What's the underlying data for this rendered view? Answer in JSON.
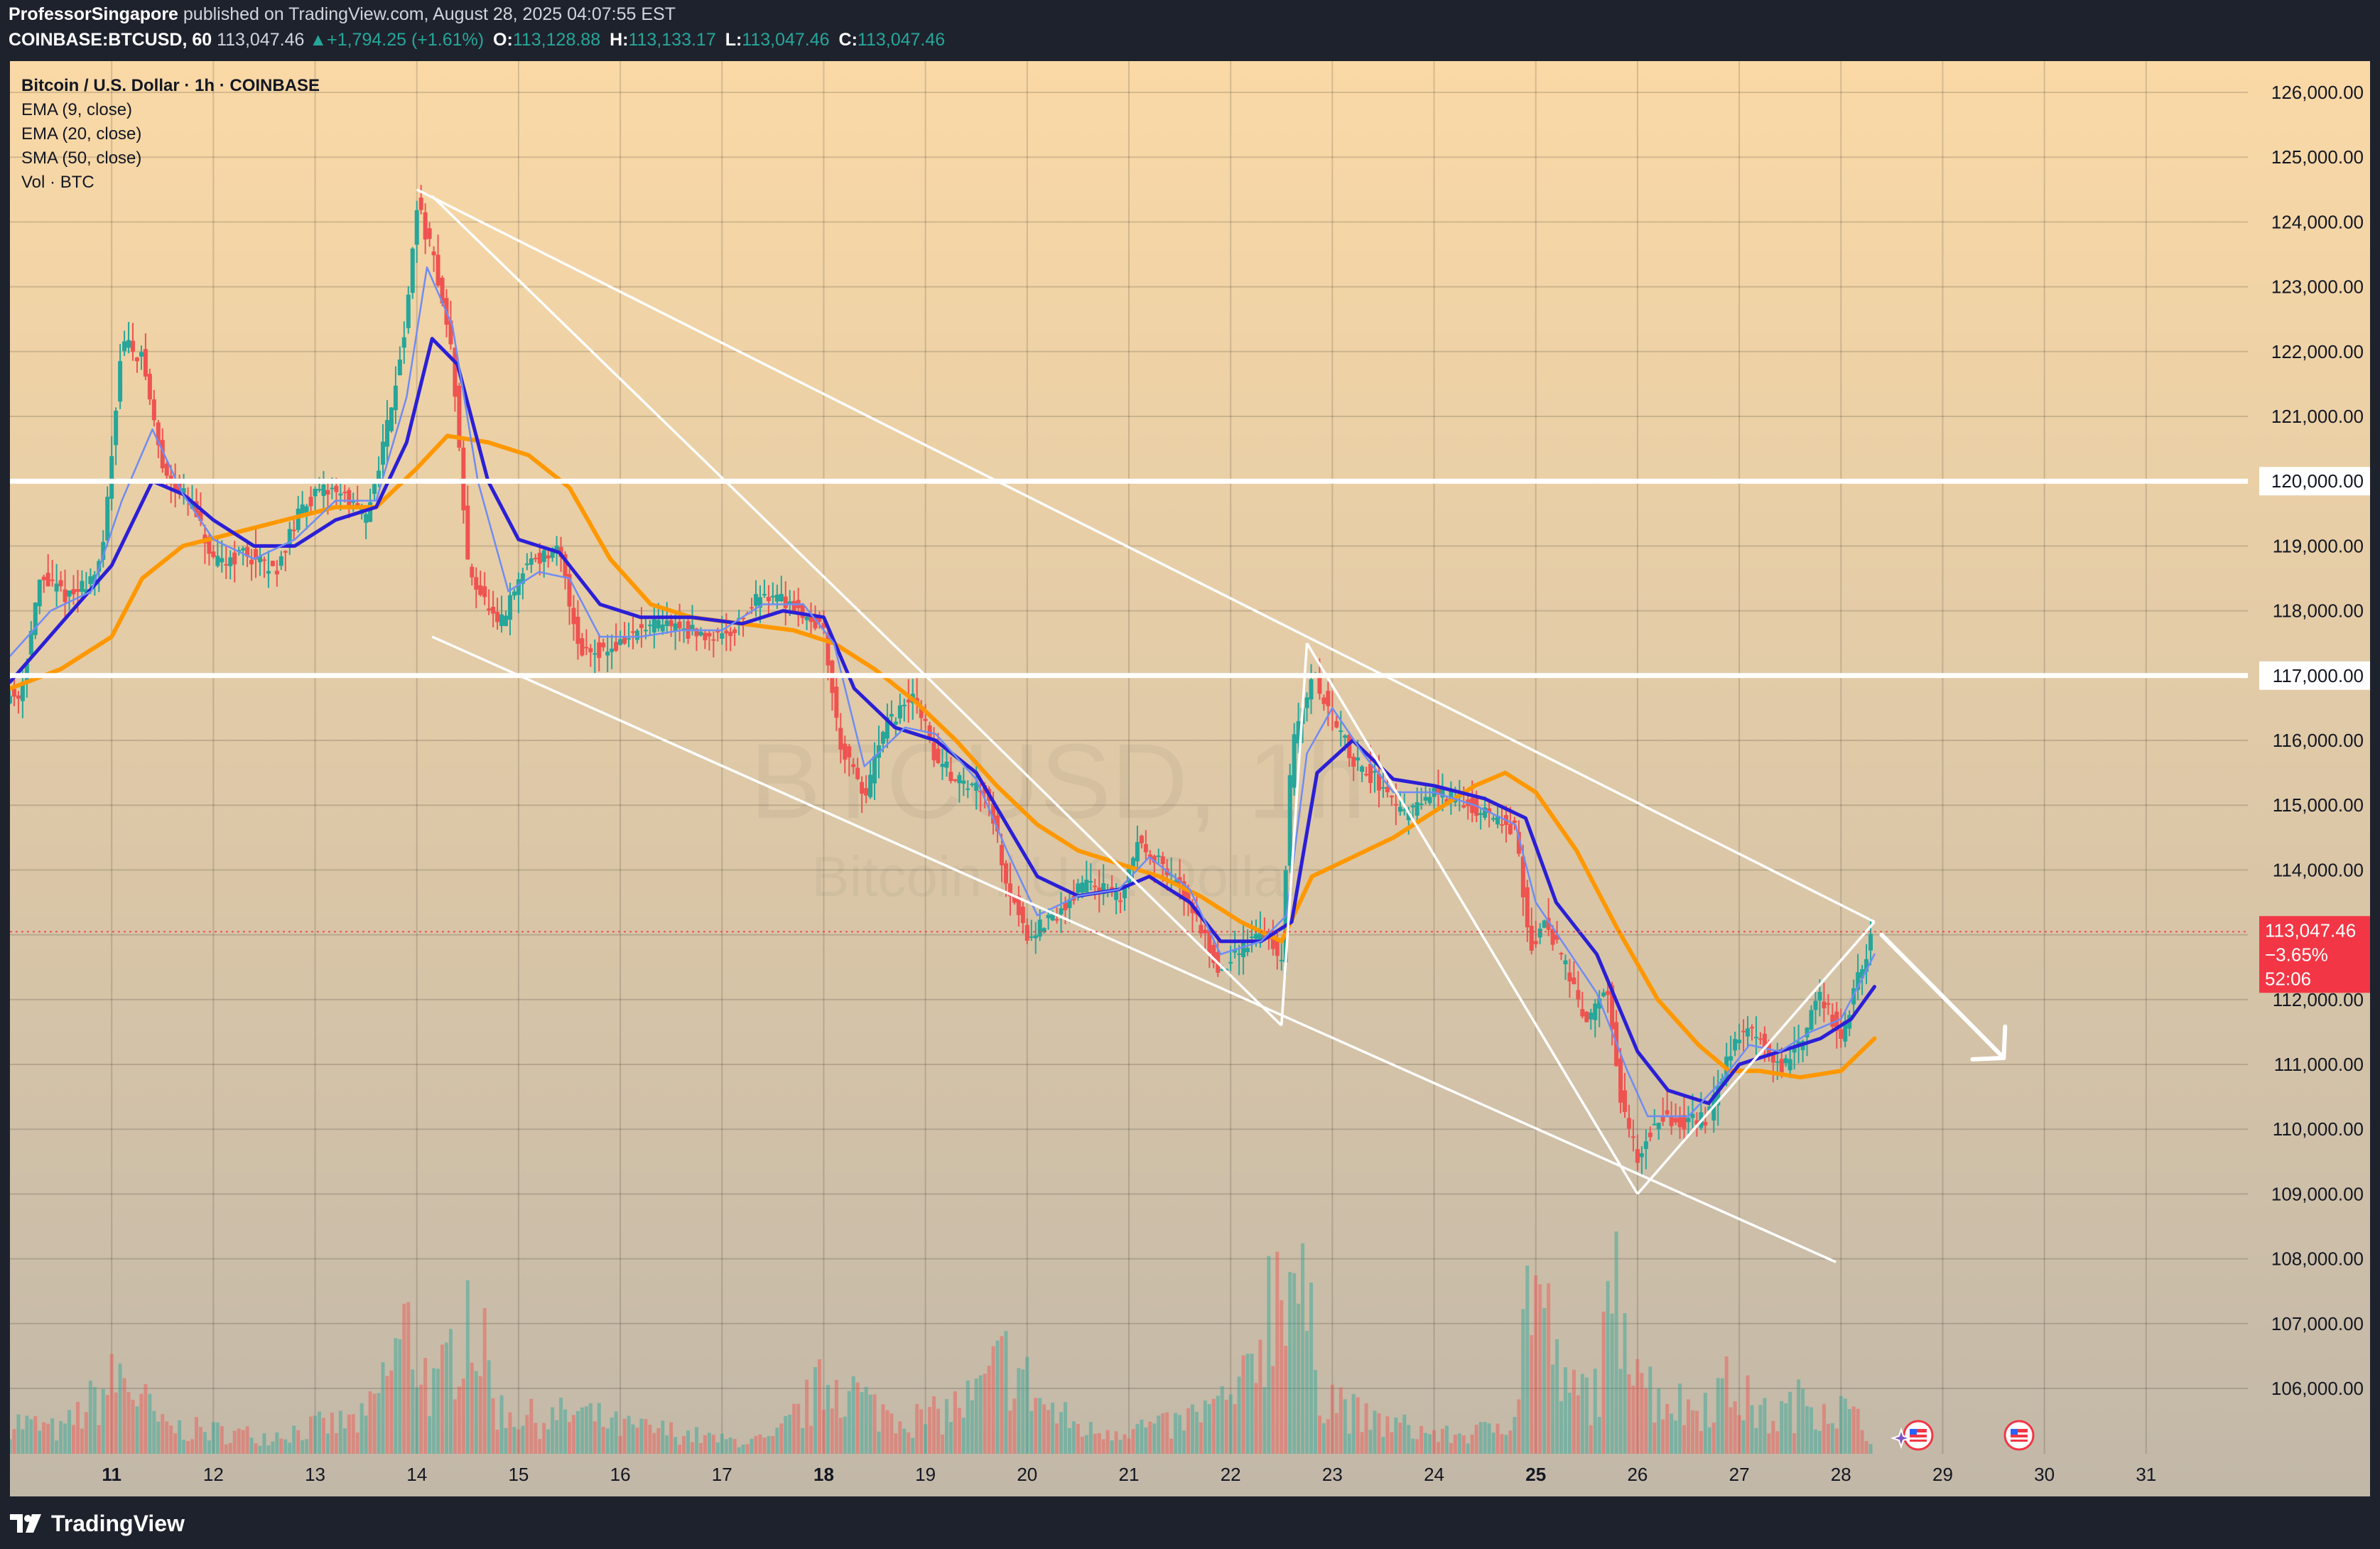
{
  "header": {
    "author": "ProfessorSingapore",
    "published": "published on TradingView.com, August 28, 2025 04:07:55 EST",
    "symbol": "COINBASE:BTCUSD, 60",
    "last": "113,047.46",
    "change": "+1,794.25 (+1.61%)",
    "open": "113,128.88",
    "high": "113,133.17",
    "low": "113,047.46",
    "close": "113,047.46",
    "labels": {
      "o": "O:",
      "h": "H:",
      "l": "L:",
      "c": "C:"
    }
  },
  "legend": {
    "title": "Bitcoin / U.S. Dollar · 1h · COINBASE",
    "items": [
      "EMA (9, close)",
      "EMA (20, close)",
      "SMA (50, close)",
      "Vol · BTC"
    ]
  },
  "watermark": {
    "symbol": "BTCUSD, 1h",
    "name": "Bitcoin / U.S. Dollar"
  },
  "brand": "TradingView",
  "colors": {
    "up": "#26a69a",
    "down": "#ef5350",
    "ema9": "#6f8cf5",
    "ema20": "#2b1fd6",
    "sma50": "#ff9800",
    "trend": "#ffffff",
    "bg_top": "#fad9a6",
    "bg_bottom": "#c2b8a8",
    "price_label": "#f23645"
  },
  "chart_data": {
    "type": "candlestick",
    "x_labels": [
      {
        "day": 11,
        "label": "11",
        "bold": true
      },
      {
        "day": 12,
        "label": "12"
      },
      {
        "day": 13,
        "label": "13"
      },
      {
        "day": 14,
        "label": "14"
      },
      {
        "day": 15,
        "label": "15"
      },
      {
        "day": 16,
        "label": "16"
      },
      {
        "day": 17,
        "label": "17"
      },
      {
        "day": 18,
        "label": "18",
        "bold": true
      },
      {
        "day": 19,
        "label": "19"
      },
      {
        "day": 20,
        "label": "20"
      },
      {
        "day": 21,
        "label": "21"
      },
      {
        "day": 22,
        "label": "22"
      },
      {
        "day": 23,
        "label": "23"
      },
      {
        "day": 24,
        "label": "24"
      },
      {
        "day": 25,
        "label": "25",
        "bold": true
      },
      {
        "day": 26,
        "label": "26"
      },
      {
        "day": 27,
        "label": "27"
      },
      {
        "day": 28,
        "label": "28"
      },
      {
        "day": 29,
        "label": "29"
      },
      {
        "day": 30,
        "label": "30"
      },
      {
        "day": 31,
        "label": "31"
      }
    ],
    "y_ticks": [
      106000,
      107000,
      108000,
      109000,
      110000,
      111000,
      112000,
      113000,
      114000,
      115000,
      116000,
      117000,
      118000,
      119000,
      120000,
      121000,
      122000,
      123000,
      124000,
      125000,
      126000
    ],
    "y_tick_labels": [
      "106,000.00",
      "107,000.00",
      "108,000.00",
      "109,000.00",
      "110,000.00",
      "111,000.00",
      "112,000.00",
      "113,000.00",
      "114,000.00",
      "115,000.00",
      "116,000.00",
      "117,000.00",
      "118,000.00",
      "119,000.00",
      "120,000.00",
      "121,000.00",
      "122,000.00",
      "123,000.00",
      "124,000.00",
      "125,000.00",
      "126,000.00"
    ],
    "ylim": [
      105000,
      127000
    ],
    "xlim": [
      10.0,
      32.0
    ],
    "price_path": [
      [
        10.1,
        116700
      ],
      [
        10.3,
        118500
      ],
      [
        10.6,
        118200
      ],
      [
        10.9,
        118700
      ],
      [
        11.1,
        122200
      ],
      [
        11.3,
        121900
      ],
      [
        11.5,
        120200
      ],
      [
        11.8,
        119600
      ],
      [
        12.0,
        118700
      ],
      [
        12.3,
        118900
      ],
      [
        12.6,
        118600
      ],
      [
        12.9,
        119700
      ],
      [
        13.2,
        119900
      ],
      [
        13.5,
        119400
      ],
      [
        13.7,
        120800
      ],
      [
        13.9,
        122500
      ],
      [
        14.0,
        124300
      ],
      [
        14.2,
        123200
      ],
      [
        14.35,
        121900
      ],
      [
        14.5,
        118700
      ],
      [
        14.8,
        117700
      ],
      [
        15.1,
        118800
      ],
      [
        15.4,
        118900
      ],
      [
        15.6,
        117400
      ],
      [
        15.9,
        117400
      ],
      [
        16.2,
        117700
      ],
      [
        16.5,
        117800
      ],
      [
        16.8,
        117600
      ],
      [
        17.1,
        117700
      ],
      [
        17.4,
        118300
      ],
      [
        17.7,
        118100
      ],
      [
        18.0,
        117700
      ],
      [
        18.15,
        116000
      ],
      [
        18.4,
        115100
      ],
      [
        18.6,
        116200
      ],
      [
        18.9,
        116700
      ],
      [
        19.1,
        115700
      ],
      [
        19.4,
        115300
      ],
      [
        19.6,
        115300
      ],
      [
        19.8,
        113800
      ],
      [
        20.0,
        113000
      ],
      [
        20.3,
        113300
      ],
      [
        20.6,
        113900
      ],
      [
        20.9,
        113500
      ],
      [
        21.1,
        114500
      ],
      [
        21.4,
        113900
      ],
      [
        21.6,
        113500
      ],
      [
        21.9,
        112400
      ],
      [
        22.1,
        112800
      ],
      [
        22.3,
        113100
      ],
      [
        22.5,
        112600
      ],
      [
        22.6,
        115900
      ],
      [
        22.8,
        117000
      ],
      [
        23.0,
        116400
      ],
      [
        23.2,
        115700
      ],
      [
        23.5,
        115300
      ],
      [
        23.7,
        114800
      ],
      [
        24.0,
        115200
      ],
      [
        24.2,
        115100
      ],
      [
        24.5,
        114900
      ],
      [
        24.8,
        114600
      ],
      [
        24.95,
        112800
      ],
      [
        25.1,
        113200
      ],
      [
        25.3,
        112500
      ],
      [
        25.5,
        111600
      ],
      [
        25.7,
        112200
      ],
      [
        25.85,
        110300
      ],
      [
        26.0,
        109600
      ],
      [
        26.2,
        110200
      ],
      [
        26.5,
        110100
      ],
      [
        26.7,
        110200
      ],
      [
        26.85,
        110900
      ],
      [
        27.0,
        111500
      ],
      [
        27.2,
        111500
      ],
      [
        27.4,
        110900
      ],
      [
        27.6,
        111300
      ],
      [
        27.8,
        112100
      ],
      [
        28.0,
        111400
      ],
      [
        28.2,
        112500
      ],
      [
        28.33,
        113047
      ]
    ],
    "ema9_path": [
      [
        10.0,
        117300
      ],
      [
        10.4,
        118000
      ],
      [
        10.8,
        118300
      ],
      [
        11.1,
        119700
      ],
      [
        11.4,
        120800
      ],
      [
        11.7,
        119800
      ],
      [
        12.0,
        119100
      ],
      [
        12.4,
        118800
      ],
      [
        12.8,
        119100
      ],
      [
        13.2,
        119700
      ],
      [
        13.6,
        119700
      ],
      [
        13.9,
        121300
      ],
      [
        14.1,
        123300
      ],
      [
        14.35,
        122400
      ],
      [
        14.6,
        120000
      ],
      [
        14.9,
        118300
      ],
      [
        15.2,
        118600
      ],
      [
        15.5,
        118500
      ],
      [
        15.8,
        117600
      ],
      [
        16.2,
        117600
      ],
      [
        16.6,
        117700
      ],
      [
        17.0,
        117700
      ],
      [
        17.4,
        118100
      ],
      [
        17.8,
        118100
      ],
      [
        18.1,
        117500
      ],
      [
        18.4,
        115600
      ],
      [
        18.8,
        116200
      ],
      [
        19.1,
        116100
      ],
      [
        19.5,
        115400
      ],
      [
        19.8,
        114300
      ],
      [
        20.1,
        113300
      ],
      [
        20.5,
        113600
      ],
      [
        20.9,
        113700
      ],
      [
        21.2,
        114200
      ],
      [
        21.6,
        113700
      ],
      [
        21.9,
        112700
      ],
      [
        22.3,
        112900
      ],
      [
        22.55,
        113300
      ],
      [
        22.75,
        115800
      ],
      [
        23.0,
        116500
      ],
      [
        23.3,
        115800
      ],
      [
        23.6,
        115200
      ],
      [
        24.0,
        115200
      ],
      [
        24.4,
        115000
      ],
      [
        24.8,
        114700
      ],
      [
        25.0,
        113500
      ],
      [
        25.3,
        112800
      ],
      [
        25.6,
        112100
      ],
      [
        25.9,
        110900
      ],
      [
        26.1,
        110200
      ],
      [
        26.5,
        110200
      ],
      [
        26.8,
        110700
      ],
      [
        27.1,
        111300
      ],
      [
        27.4,
        111200
      ],
      [
        27.7,
        111500
      ],
      [
        28.0,
        111700
      ],
      [
        28.2,
        112300
      ],
      [
        28.33,
        112700
      ]
    ],
    "ema20_path": [
      [
        10.0,
        116900
      ],
      [
        10.5,
        117800
      ],
      [
        11.0,
        118700
      ],
      [
        11.4,
        120000
      ],
      [
        11.7,
        119800
      ],
      [
        12.0,
        119400
      ],
      [
        12.4,
        119000
      ],
      [
        12.8,
        119000
      ],
      [
        13.2,
        119400
      ],
      [
        13.6,
        119600
      ],
      [
        13.9,
        120600
      ],
      [
        14.15,
        122200
      ],
      [
        14.4,
        121800
      ],
      [
        14.7,
        120000
      ],
      [
        15.0,
        119100
      ],
      [
        15.4,
        118900
      ],
      [
        15.8,
        118100
      ],
      [
        16.2,
        117900
      ],
      [
        16.7,
        117900
      ],
      [
        17.2,
        117800
      ],
      [
        17.6,
        118000
      ],
      [
        18.0,
        117900
      ],
      [
        18.3,
        116800
      ],
      [
        18.7,
        116200
      ],
      [
        19.1,
        116000
      ],
      [
        19.5,
        115500
      ],
      [
        19.8,
        114700
      ],
      [
        20.1,
        113900
      ],
      [
        20.5,
        113600
      ],
      [
        20.9,
        113700
      ],
      [
        21.2,
        113900
      ],
      [
        21.6,
        113500
      ],
      [
        21.9,
        112900
      ],
      [
        22.3,
        112900
      ],
      [
        22.6,
        113200
      ],
      [
        22.85,
        115500
      ],
      [
        23.2,
        116000
      ],
      [
        23.6,
        115400
      ],
      [
        24.0,
        115300
      ],
      [
        24.5,
        115100
      ],
      [
        24.9,
        114800
      ],
      [
        25.2,
        113500
      ],
      [
        25.6,
        112700
      ],
      [
        26.0,
        111200
      ],
      [
        26.3,
        110600
      ],
      [
        26.7,
        110400
      ],
      [
        27.0,
        111000
      ],
      [
        27.4,
        111200
      ],
      [
        27.8,
        111400
      ],
      [
        28.1,
        111700
      ],
      [
        28.33,
        112200
      ]
    ],
    "sma50_path": [
      [
        10.0,
        116800
      ],
      [
        10.5,
        117100
      ],
      [
        11.0,
        117600
      ],
      [
        11.3,
        118500
      ],
      [
        11.7,
        119000
      ],
      [
        12.2,
        119200
      ],
      [
        12.7,
        119400
      ],
      [
        13.2,
        119600
      ],
      [
        13.6,
        119600
      ],
      [
        14.0,
        120200
      ],
      [
        14.3,
        120700
      ],
      [
        14.7,
        120600
      ],
      [
        15.1,
        120400
      ],
      [
        15.5,
        119900
      ],
      [
        15.9,
        118800
      ],
      [
        16.3,
        118100
      ],
      [
        16.7,
        117900
      ],
      [
        17.2,
        117800
      ],
      [
        17.7,
        117700
      ],
      [
        18.1,
        117500
      ],
      [
        18.5,
        117100
      ],
      [
        18.9,
        116600
      ],
      [
        19.3,
        116000
      ],
      [
        19.7,
        115300
      ],
      [
        20.1,
        114700
      ],
      [
        20.5,
        114300
      ],
      [
        20.9,
        114100
      ],
      [
        21.3,
        113900
      ],
      [
        21.7,
        113600
      ],
      [
        22.1,
        113200
      ],
      [
        22.5,
        112900
      ],
      [
        22.8,
        113900
      ],
      [
        23.2,
        114200
      ],
      [
        23.6,
        114500
      ],
      [
        24.0,
        114900
      ],
      [
        24.4,
        115300
      ],
      [
        24.7,
        115500
      ],
      [
        25.0,
        115200
      ],
      [
        25.4,
        114300
      ],
      [
        25.8,
        113100
      ],
      [
        26.2,
        112000
      ],
      [
        26.6,
        111300
      ],
      [
        26.9,
        110900
      ],
      [
        27.2,
        110900
      ],
      [
        27.6,
        110800
      ],
      [
        28.0,
        110900
      ],
      [
        28.33,
        111400
      ]
    ],
    "volume_profile": [
      [
        10.0,
        0.15
      ],
      [
        10.5,
        0.1
      ],
      [
        11.1,
        0.35
      ],
      [
        11.5,
        0.12
      ],
      [
        12.0,
        0.1
      ],
      [
        12.5,
        0.08
      ],
      [
        13.0,
        0.12
      ],
      [
        13.5,
        0.15
      ],
      [
        13.9,
        0.55
      ],
      [
        14.2,
        0.25
      ],
      [
        14.5,
        0.7
      ],
      [
        14.8,
        0.2
      ],
      [
        15.2,
        0.15
      ],
      [
        15.6,
        0.18
      ],
      [
        16.0,
        0.12
      ],
      [
        16.5,
        0.1
      ],
      [
        17.0,
        0.06
      ],
      [
        17.5,
        0.06
      ],
      [
        18.1,
        0.35
      ],
      [
        18.5,
        0.2
      ],
      [
        19.0,
        0.15
      ],
      [
        19.5,
        0.25
      ],
      [
        19.8,
        0.42
      ],
      [
        20.2,
        0.2
      ],
      [
        20.6,
        0.1
      ],
      [
        21.0,
        0.12
      ],
      [
        21.4,
        0.12
      ],
      [
        21.8,
        0.2
      ],
      [
        22.1,
        0.25
      ],
      [
        22.55,
        0.95
      ],
      [
        22.9,
        0.3
      ],
      [
        23.3,
        0.15
      ],
      [
        23.7,
        0.12
      ],
      [
        24.1,
        0.08
      ],
      [
        24.5,
        0.1
      ],
      [
        24.8,
        0.2
      ],
      [
        24.95,
        0.85
      ],
      [
        25.3,
        0.25
      ],
      [
        25.6,
        0.3
      ],
      [
        25.85,
        0.8
      ],
      [
        26.1,
        0.3
      ],
      [
        26.5,
        0.2
      ],
      [
        26.9,
        0.3
      ],
      [
        27.3,
        0.15
      ],
      [
        27.7,
        0.25
      ],
      [
        28.0,
        0.2
      ],
      [
        28.33,
        0.08
      ]
    ],
    "horizontal_levels": [
      120000,
      117000
    ],
    "trendlines": [
      {
        "from": [
          14.0,
          124500
        ],
        "to": [
          28.33,
          113200
        ]
      },
      {
        "from": [
          14.15,
          117600
        ],
        "to": [
          27.95,
          107950
        ]
      },
      {
        "from": [
          14.15,
          124400
        ],
        "to": [
          19.0,
          117000
        ]
      },
      {
        "from": [
          19.0,
          117000
        ],
        "to": [
          22.5,
          111600
        ]
      },
      {
        "from": [
          22.5,
          111600
        ],
        "to": [
          22.75,
          117500
        ]
      },
      {
        "from": [
          22.75,
          117500
        ],
        "to": [
          26.0,
          109000
        ]
      },
      {
        "from": [
          26.0,
          109000
        ],
        "to": [
          28.33,
          113200
        ]
      }
    ],
    "forecast_arrow": {
      "from": [
        28.4,
        113000
      ],
      "to": [
        29.6,
        111100
      ]
    },
    "current_price": {
      "value": 113047.46,
      "label": "113,047.46",
      "change_pct": "−3.65%",
      "countdown": "52:06"
    },
    "price_labels": {
      "120000": "120,000.00",
      "117000": "117,000.00"
    }
  }
}
